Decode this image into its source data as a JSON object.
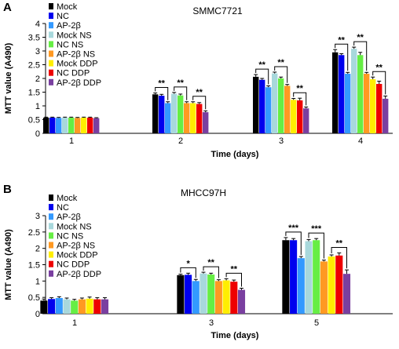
{
  "chart_data": [
    {
      "type": "bar",
      "panel": "A",
      "title": "SMMC7721",
      "xlabel": "Time (days)",
      "ylabel": "MTT value (A490)",
      "ylim": [
        0,
        4.0
      ],
      "yticks": [
        "0",
        "0.5",
        "1",
        "1.5",
        "2",
        "2.5",
        "3",
        "3.5",
        "4"
      ],
      "categories": [
        "1",
        "2",
        "3",
        "4"
      ],
      "legend_placement": "top-left",
      "grid": false,
      "series": [
        {
          "name": "Mock",
          "color": "#000000",
          "values": [
            0.57,
            1.42,
            2.06,
            2.95
          ],
          "errors": [
            0.02,
            0.05,
            0.08,
            0.1
          ]
        },
        {
          "name": "NC",
          "color": "#0000ee",
          "values": [
            0.57,
            1.37,
            1.95,
            2.85
          ],
          "errors": [
            0.02,
            0.05,
            0.05,
            0.05
          ]
        },
        {
          "name": "AP-2β",
          "color": "#3399ff",
          "values": [
            0.56,
            1.1,
            1.68,
            2.17
          ],
          "errors": [
            0.02,
            0.05,
            0.05,
            0.05
          ]
        },
        {
          "name": "Mock NS",
          "color": "#a8d8dc",
          "values": [
            0.57,
            1.44,
            2.18,
            3.08
          ],
          "errors": [
            0.02,
            0.05,
            0.05,
            0.06
          ]
        },
        {
          "name": "NC NS",
          "color": "#66ee44",
          "values": [
            0.57,
            1.38,
            2.0,
            2.85
          ],
          "errors": [
            0.02,
            0.05,
            0.05,
            0.1
          ]
        },
        {
          "name": "AP-2β NS",
          "color": "#ff9922",
          "values": [
            0.56,
            1.1,
            1.73,
            2.17
          ],
          "errors": [
            0.02,
            0.05,
            0.05,
            0.05
          ]
        },
        {
          "name": "Mock DDP",
          "color": "#ffee00",
          "values": [
            0.57,
            1.1,
            1.22,
            1.97
          ],
          "errors": [
            0.02,
            0.05,
            0.05,
            0.08
          ]
        },
        {
          "name": "NC DDP",
          "color": "#ee0000",
          "values": [
            0.57,
            1.07,
            1.2,
            1.8
          ],
          "errors": [
            0.02,
            0.05,
            0.08,
            0.1
          ]
        },
        {
          "name": "AP-2β DDP",
          "color": "#7a3fa0",
          "values": [
            0.55,
            0.77,
            0.91,
            1.26
          ],
          "errors": [
            0.02,
            0.05,
            0.05,
            0.1
          ]
        }
      ],
      "significance": [
        {
          "category": 1,
          "from": 0,
          "to": 2,
          "label": "**"
        },
        {
          "category": 1,
          "from": 3,
          "to": 5,
          "label": "**"
        },
        {
          "category": 1,
          "from": 6,
          "to": 8,
          "label": "**"
        },
        {
          "category": 2,
          "from": 0,
          "to": 2,
          "label": "**"
        },
        {
          "category": 2,
          "from": 3,
          "to": 5,
          "label": "**"
        },
        {
          "category": 2,
          "from": 6,
          "to": 8,
          "label": "**"
        },
        {
          "category": 3,
          "from": 0,
          "to": 2,
          "label": "**"
        },
        {
          "category": 3,
          "from": 3,
          "to": 5,
          "label": "**"
        },
        {
          "category": 3,
          "from": 6,
          "to": 8,
          "label": "**"
        }
      ]
    },
    {
      "type": "bar",
      "panel": "B",
      "title": "MHCC97H",
      "xlabel": "Time (days)",
      "ylabel": "MTT value (A490)",
      "ylim": [
        0,
        3.0
      ],
      "yticks": [
        "0",
        "0.5",
        "1",
        "1.5",
        "2",
        "2.5",
        "3"
      ],
      "categories": [
        "1",
        "3",
        "5"
      ],
      "legend_placement": "top-left",
      "grid": false,
      "series": [
        {
          "name": "Mock",
          "color": "#000000",
          "values": [
            0.4,
            1.18,
            2.25
          ],
          "errors": [
            0.05,
            0.03,
            0.08
          ]
        },
        {
          "name": "NC",
          "color": "#0000ee",
          "values": [
            0.45,
            1.19,
            2.25
          ],
          "errors": [
            0.04,
            0.05,
            0.05
          ]
        },
        {
          "name": "AP-2β",
          "color": "#3399ff",
          "values": [
            0.48,
            1.0,
            1.7
          ],
          "errors": [
            0.04,
            0.05,
            0.05
          ]
        },
        {
          "name": "Mock NS",
          "color": "#a8d8dc",
          "values": [
            0.44,
            1.23,
            2.22
          ],
          "errors": [
            0.04,
            0.04,
            0.05
          ]
        },
        {
          "name": "NC NS",
          "color": "#66ee44",
          "values": [
            0.4,
            1.2,
            2.25
          ],
          "errors": [
            0.04,
            0.04,
            0.05
          ]
        },
        {
          "name": "AP-2β NS",
          "color": "#ff9922",
          "values": [
            0.44,
            1.0,
            1.6
          ],
          "errors": [
            0.04,
            0.04,
            0.04
          ]
        },
        {
          "name": "Mock DDP",
          "color": "#ffee00",
          "values": [
            0.46,
            1.02,
            1.75
          ],
          "errors": [
            0.05,
            0.05,
            0.05
          ]
        },
        {
          "name": "NC DDP",
          "color": "#ee0000",
          "values": [
            0.44,
            0.98,
            1.78
          ],
          "errors": [
            0.05,
            0.05,
            0.08
          ]
        },
        {
          "name": "AP-2β DDP",
          "color": "#7a3fa0",
          "values": [
            0.44,
            0.73,
            1.22
          ],
          "errors": [
            0.05,
            0.05,
            0.12
          ]
        }
      ],
      "significance": [
        {
          "category": 1,
          "from": 0,
          "to": 2,
          "label": "*"
        },
        {
          "category": 1,
          "from": 3,
          "to": 5,
          "label": "**"
        },
        {
          "category": 1,
          "from": 6,
          "to": 8,
          "label": "**"
        },
        {
          "category": 2,
          "from": 0,
          "to": 2,
          "label": "***"
        },
        {
          "category": 2,
          "from": 3,
          "to": 5,
          "label": "***"
        },
        {
          "category": 2,
          "from": 6,
          "to": 8,
          "label": "**"
        }
      ]
    }
  ]
}
